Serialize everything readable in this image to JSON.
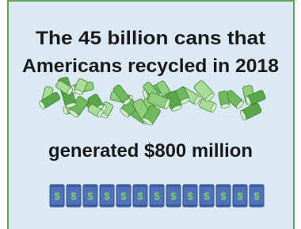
{
  "title_lines": [
    "The 45 billion cans that",
    "Americans recycled in 2018"
  ],
  "subtitle": "generated $800 million",
  "can_symbol": "$"
}
